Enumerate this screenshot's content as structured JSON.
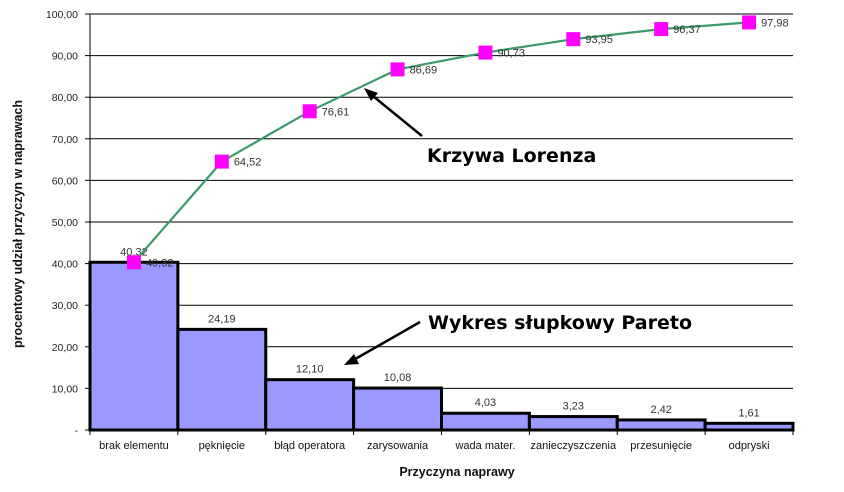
{
  "chart_data": {
    "type": "bar",
    "categories": [
      "brak elementu",
      "pęknięcie",
      "błąd operatora",
      "zarysowania",
      "wada mater.",
      "zanieczyszczenia",
      "przesunięcie",
      "odpryski"
    ],
    "bar_values": [
      40.32,
      24.19,
      12.1,
      10.08,
      4.03,
      3.23,
      2.42,
      1.61
    ],
    "bar_labels": [
      "40,32",
      "24,19",
      "12,10",
      "10,08",
      "4,03",
      "3,23",
      "2,42",
      "1,61"
    ],
    "line_values": [
      40.32,
      64.52,
      76.61,
      86.69,
      90.73,
      93.95,
      96.37,
      97.98
    ],
    "line_labels": [
      "40,32",
      "64,52",
      "76,61",
      "86,69",
      "90,73",
      "93,95",
      "96,37",
      "97,98"
    ],
    "yticks": [
      0,
      10,
      20,
      30,
      40,
      50,
      60,
      70,
      80,
      90,
      100
    ],
    "ytick_labels": [
      "-",
      "10,00",
      "20,00",
      "30,00",
      "40,00",
      "50,00",
      "60,00",
      "70,00",
      "80,00",
      "90,00",
      "100,00"
    ],
    "ylim": [
      0,
      100
    ],
    "xlabel": "Przyczyna naprawy",
    "ylabel": "procentowy udział przyczyn w naprawach",
    "grid": true,
    "colors": {
      "bar": "#9999ff",
      "line": "#3a9a6a",
      "marker": "#ff00ff",
      "grid": "#000000"
    },
    "annotations": [
      {
        "text": "Krzywa Lorenza",
        "target": "line"
      },
      {
        "text": "Wykres słupkowy Pareto",
        "target": "bars"
      }
    ]
  }
}
